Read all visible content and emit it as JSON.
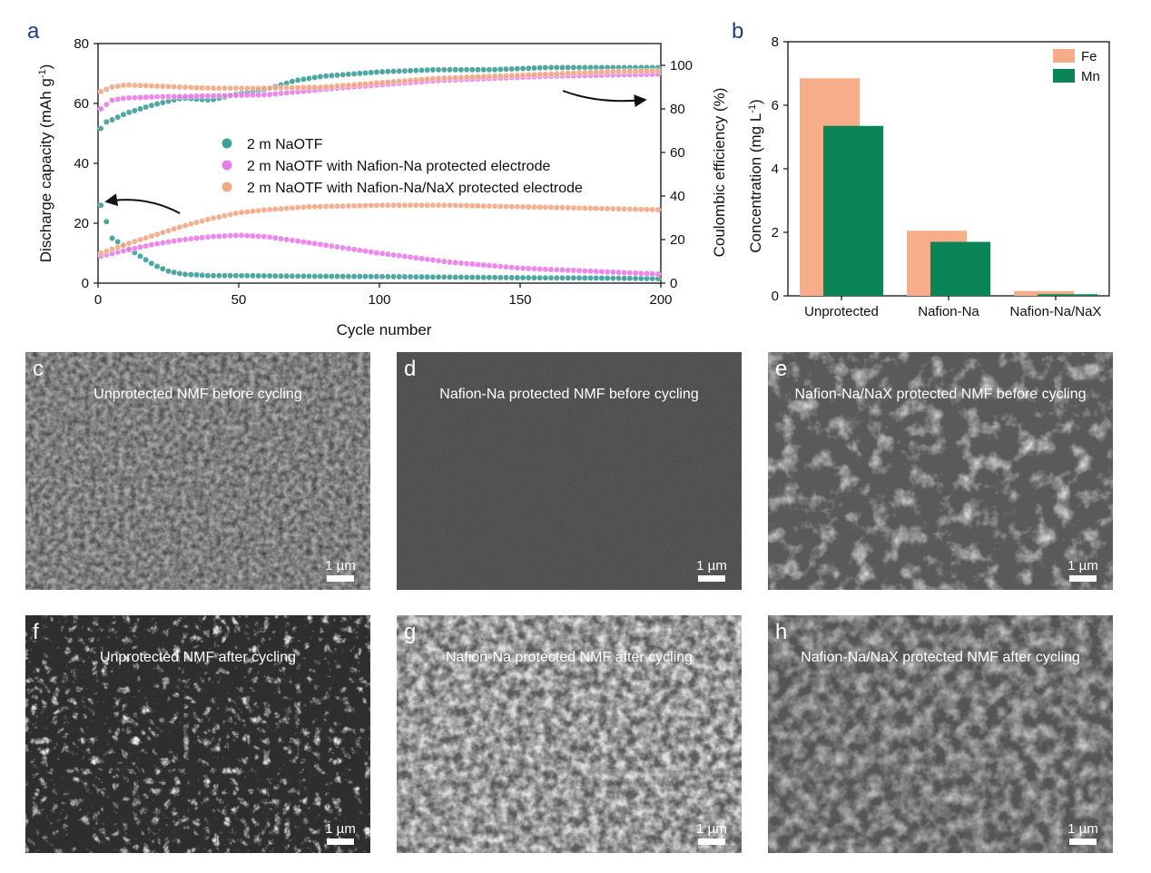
{
  "chart_data": [
    {
      "panel": "a",
      "type": "scatter",
      "xlabel": "Cycle number",
      "ylabel": "Discharge capacity (mAh g",
      "ylabel_sup": "-1",
      "ylabel_end": ")",
      "y2label": "Coulombic efficiency (%)",
      "xlim": [
        0,
        200
      ],
      "ylim": [
        0,
        80
      ],
      "y2lim": [
        0,
        110
      ],
      "xticks": [
        "0",
        "50",
        "100",
        "150",
        "200"
      ],
      "yticks": [
        "0",
        "20",
        "40",
        "60",
        "80"
      ],
      "y2ticks": [
        "0",
        "20",
        "40",
        "60",
        "80",
        "100"
      ],
      "legend_position": "center",
      "series": [
        {
          "name": "2 m NaOTF",
          "color": "#3e9e98",
          "capacity": {
            "x": [
              1,
              5,
              10,
              15,
              20,
              25,
              30,
              40,
              50,
              75,
              100,
              125,
              150,
              175,
              200
            ],
            "y": [
              26,
              15,
              12,
              9,
              6,
              4,
              3,
              2.5,
              2.5,
              2.3,
              2.2,
              2,
              1.8,
              1.7,
              1.5
            ]
          },
          "efficiency": {
            "x": [
              1,
              3,
              5,
              10,
              15,
              20,
              30,
              40,
              50,
              60,
              70,
              80,
              90,
              100,
              120,
              140,
              160,
              180,
              200
            ],
            "y": [
              71,
              74,
              75,
              78,
              80,
              82,
              85,
              84,
              87,
              89,
              93,
              95,
              96,
              97,
              98,
              98,
              99,
              99,
              99
            ]
          }
        },
        {
          "name": "2 m NaOTF with Nafion-Na protected electrode",
          "color": "#ea7de8",
          "capacity": {
            "x": [
              1,
              10,
              20,
              30,
              40,
              50,
              60,
              75,
              100,
              125,
              150,
              175,
              200
            ],
            "y": [
              9,
              11,
              13,
              14.5,
              15.5,
              16,
              15.5,
              13.5,
              10,
              7,
              5,
              4,
              3
            ]
          },
          "efficiency": {
            "x": [
              1,
              5,
              10,
              20,
              40,
              60,
              80,
              100,
              120,
              140,
              160,
              180,
              200
            ],
            "y": [
              80,
              84,
              85,
              85.5,
              86,
              86.5,
              89,
              91,
              93,
              94,
              95,
              95.5,
              96
            ]
          }
        },
        {
          "name": "2 m NaOTF with Nafion-Na/NaX protected electrode",
          "color": "#f2a987",
          "capacity": {
            "x": [
              1,
              10,
              20,
              30,
              40,
              50,
              60,
              75,
              100,
              125,
              150,
              175,
              200
            ],
            "y": [
              10,
              13,
              16,
              19,
              21.5,
              23.5,
              24.5,
              25.5,
              26,
              26,
              25.5,
              25,
              24.5
            ]
          },
          "efficiency": {
            "x": [
              1,
              5,
              10,
              20,
              40,
              60,
              80,
              100,
              120,
              140,
              160,
              180,
              200
            ],
            "y": [
              88,
              90,
              91,
              90.5,
              89.5,
              89.5,
              90,
              92,
              94,
              95,
              96,
              97,
              97.5
            ]
          }
        }
      ]
    },
    {
      "panel": "b",
      "type": "bar",
      "ylabel": "Concentration (mg L",
      "ylabel_sup": "-1",
      "ylabel_end": ")",
      "ylim": [
        0,
        8
      ],
      "yticks": [
        "0",
        "2",
        "4",
        "6",
        "8"
      ],
      "categories": [
        "Unprotected",
        "Nafion-Na",
        "Nafion-Na/NaX"
      ],
      "legend_position": "top-right",
      "series": [
        {
          "name": "Fe",
          "color": "#f8ad8a",
          "values": [
            6.85,
            2.05,
            0.15
          ]
        },
        {
          "name": "Mn",
          "color": "#0b8455",
          "values": [
            5.35,
            1.7,
            0.05
          ]
        }
      ]
    }
  ],
  "panel_a_letter": "a",
  "panel_b_letter": "b",
  "sem_panels": [
    {
      "letter": "c",
      "caption": "Unprotected NMF before cycling",
      "scale": "1 µm"
    },
    {
      "letter": "d",
      "caption": "Nafion-Na protected NMF before cycling",
      "scale": "1 µm"
    },
    {
      "letter": "e",
      "caption": "Nafion-Na/NaX protected NMF before cycling",
      "scale": "1 µm"
    },
    {
      "letter": "f",
      "caption": "Unprotected NMF after cycling",
      "scale": "1 µm"
    },
    {
      "letter": "g",
      "caption": "Nafion-Na protected NMF after cycling",
      "scale": "1 µm"
    },
    {
      "letter": "h",
      "caption": "Nafion-Na/NaX protected NMF after cycling",
      "scale": "1 µm"
    }
  ]
}
